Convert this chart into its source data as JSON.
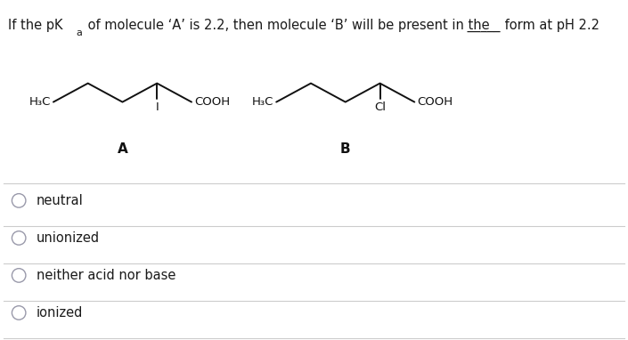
{
  "options": [
    "neutral",
    "unionized",
    "neither acid nor base",
    "ionized"
  ],
  "bg_color": "#ffffff",
  "text_color": "#1a1a1a",
  "line_color": "#cccccc",
  "circle_color": "#9999aa",
  "mol_line_color": "#111111",
  "font_size_question": 10.5,
  "font_size_options": 10.5,
  "font_size_mol_label": 11,
  "font_size_struct": 9.5
}
